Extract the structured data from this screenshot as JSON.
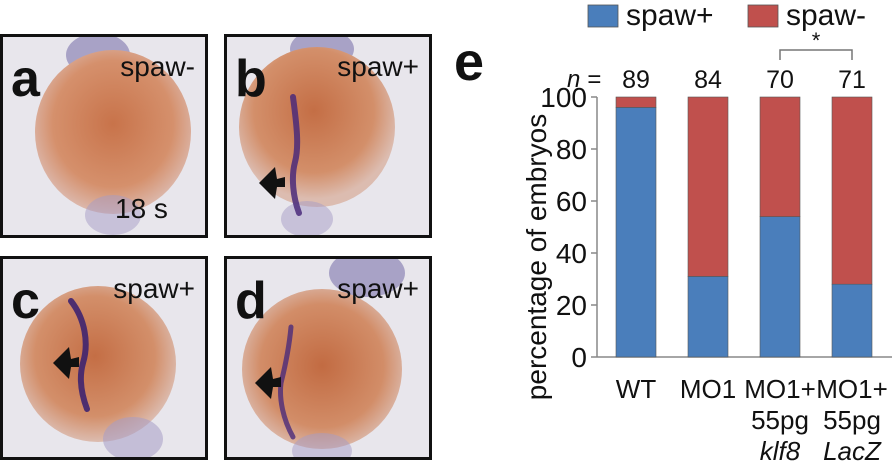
{
  "panels": [
    {
      "label": "a",
      "tag": "spaw-",
      "stage": "18 s",
      "arrow": false
    },
    {
      "label": "b",
      "tag": "spaw+",
      "stage": "",
      "arrow": true
    },
    {
      "label": "c",
      "tag": "spaw+",
      "stage": "",
      "arrow": true
    },
    {
      "label": "d",
      "tag": "spaw+",
      "stage": "",
      "arrow": true
    }
  ],
  "chart_data": {
    "type": "bar",
    "stacked": true,
    "panel_label": "e",
    "ylabel": "percentage of embryos",
    "xlabel": "",
    "ylim": [
      0,
      100
    ],
    "yticks": [
      0,
      20,
      40,
      60,
      80,
      100
    ],
    "grid": false,
    "legend_position": "top",
    "categories": [
      {
        "line1": "WT",
        "line2": "",
        "line3": ""
      },
      {
        "line1": "MO1",
        "line2": "",
        "line3": ""
      },
      {
        "line1": "MO1+",
        "line2": "55pg",
        "line3": "klf8"
      },
      {
        "line1": "MO1+",
        "line2": "55pg",
        "line3": "LacZ"
      }
    ],
    "n_prefix": "n =",
    "n_values": [
      "89",
      "84",
      "70",
      "71"
    ],
    "series": [
      {
        "name": "spaw+",
        "color": "#4a7ebb",
        "values": [
          96,
          31,
          54,
          28
        ]
      },
      {
        "name": "spaw-",
        "color": "#c0504d",
        "values": [
          4,
          69,
          46,
          72
        ]
      }
    ],
    "significance": {
      "from": 2,
      "to": 3,
      "label": "*"
    }
  }
}
